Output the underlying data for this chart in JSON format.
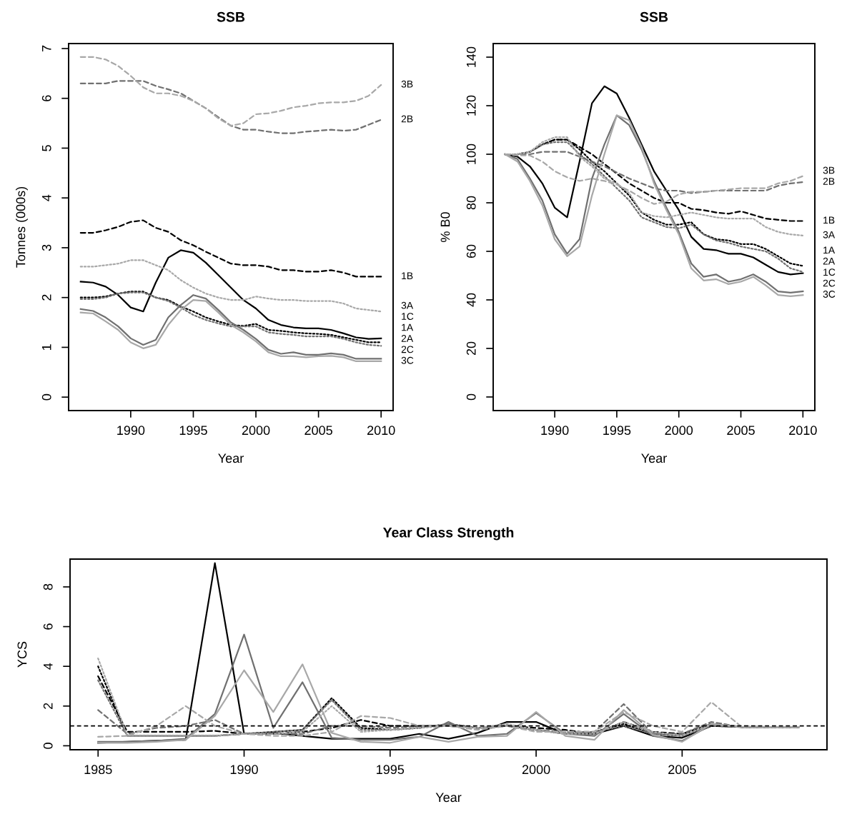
{
  "chart_data": [
    {
      "type": "line",
      "title": "SSB",
      "xlabel": "Year",
      "ylabel": "Tonnes (000s)",
      "xlim": [
        1985.04,
        2010.96
      ],
      "ylim": [
        -0.27,
        7.1
      ],
      "xticks": [
        1990,
        1995,
        2000,
        2005,
        2010
      ],
      "yticks": [
        0,
        1,
        2,
        3,
        4,
        5,
        6,
        7
      ],
      "x": [
        1986,
        1987,
        1988,
        1989,
        1990,
        1991,
        1992,
        1993,
        1994,
        1995,
        1996,
        1997,
        1998,
        1999,
        2000,
        2001,
        2002,
        2003,
        2004,
        2005,
        2006,
        2007,
        2008,
        2009,
        2010
      ],
      "series": [
        {
          "name": "1A",
          "color": "#000000",
          "line_style": "dotted",
          "values": [
            2.0,
            2.0,
            2.02,
            2.08,
            2.12,
            2.12,
            2.0,
            1.95,
            1.82,
            1.72,
            1.6,
            1.52,
            1.45,
            1.43,
            1.47,
            1.35,
            1.33,
            1.3,
            1.28,
            1.27,
            1.25,
            1.2,
            1.15,
            1.1,
            1.1
          ]
        },
        {
          "name": "1B",
          "color": "#000000",
          "line_style": "dashed",
          "values": [
            3.3,
            3.3,
            3.35,
            3.42,
            3.52,
            3.55,
            3.4,
            3.32,
            3.15,
            3.05,
            2.92,
            2.8,
            2.68,
            2.65,
            2.65,
            2.62,
            2.55,
            2.55,
            2.52,
            2.52,
            2.55,
            2.5,
            2.42,
            2.42,
            2.42
          ]
        },
        {
          "name": "1C",
          "color": "#000000",
          "line_style": "solid",
          "values": [
            2.32,
            2.3,
            2.22,
            2.05,
            1.8,
            1.72,
            2.3,
            2.8,
            2.95,
            2.9,
            2.7,
            2.45,
            2.2,
            1.95,
            1.78,
            1.55,
            1.45,
            1.4,
            1.38,
            1.38,
            1.35,
            1.28,
            1.2,
            1.17,
            1.18
          ]
        },
        {
          "name": "2A",
          "color": "#707070",
          "line_style": "dotted",
          "values": [
            1.97,
            1.97,
            2.0,
            2.08,
            2.1,
            2.1,
            2.0,
            1.93,
            1.8,
            1.65,
            1.55,
            1.48,
            1.42,
            1.42,
            1.42,
            1.3,
            1.27,
            1.25,
            1.22,
            1.22,
            1.22,
            1.17,
            1.1,
            1.05,
            1.03
          ]
        },
        {
          "name": "2B",
          "color": "#707070",
          "line_style": "dashed",
          "values": [
            6.3,
            6.3,
            6.3,
            6.35,
            6.35,
            6.35,
            6.25,
            6.18,
            6.1,
            5.95,
            5.8,
            5.62,
            5.45,
            5.37,
            5.37,
            5.33,
            5.3,
            5.3,
            5.33,
            5.35,
            5.37,
            5.35,
            5.37,
            5.47,
            5.57
          ]
        },
        {
          "name": "2C",
          "color": "#707070",
          "line_style": "solid",
          "values": [
            1.77,
            1.73,
            1.6,
            1.42,
            1.18,
            1.05,
            1.15,
            1.6,
            1.85,
            2.05,
            1.98,
            1.75,
            1.5,
            1.35,
            1.17,
            0.95,
            0.87,
            0.9,
            0.85,
            0.85,
            0.88,
            0.85,
            0.77,
            0.77,
            0.77
          ]
        },
        {
          "name": "3A",
          "color": "#a8a8a8",
          "line_style": "dotted",
          "values": [
            2.62,
            2.62,
            2.65,
            2.68,
            2.75,
            2.75,
            2.65,
            2.55,
            2.35,
            2.2,
            2.08,
            2.0,
            1.95,
            1.95,
            2.02,
            1.98,
            1.95,
            1.95,
            1.93,
            1.93,
            1.93,
            1.88,
            1.78,
            1.75,
            1.72
          ]
        },
        {
          "name": "3B",
          "color": "#a8a8a8",
          "line_style": "dashed",
          "values": [
            6.83,
            6.83,
            6.78,
            6.65,
            6.45,
            6.22,
            6.1,
            6.1,
            6.05,
            5.95,
            5.8,
            5.6,
            5.45,
            5.5,
            5.68,
            5.7,
            5.75,
            5.82,
            5.85,
            5.9,
            5.92,
            5.92,
            5.95,
            6.05,
            6.27
          ]
        },
        {
          "name": "3C",
          "color": "#a8a8a8",
          "line_style": "solid",
          "values": [
            1.7,
            1.68,
            1.52,
            1.35,
            1.1,
            0.98,
            1.05,
            1.45,
            1.75,
            1.95,
            1.93,
            1.7,
            1.45,
            1.3,
            1.12,
            0.9,
            0.82,
            0.82,
            0.8,
            0.82,
            0.83,
            0.8,
            0.72,
            0.72,
            0.72
          ]
        }
      ]
    },
    {
      "type": "line",
      "title": "SSB",
      "xlabel": "Year",
      "ylabel": "% B0",
      "xlim": [
        1985.04,
        2010.96
      ],
      "ylim": [
        -5.6,
        145.6
      ],
      "xticks": [
        1990,
        1995,
        2000,
        2005,
        2010
      ],
      "yticks": [
        0,
        20,
        40,
        60,
        80,
        100,
        120,
        140
      ],
      "x": [
        1986,
        1987,
        1988,
        1989,
        1990,
        1991,
        1992,
        1993,
        1994,
        1995,
        1996,
        1997,
        1998,
        1999,
        2000,
        2001,
        2002,
        2003,
        2004,
        2005,
        2006,
        2007,
        2008,
        2009,
        2010
      ],
      "series": [
        {
          "name": "1A",
          "color": "#000000",
          "line_style": "dotted",
          "values": [
            100,
            100,
            101,
            104,
            106,
            106,
            102,
            97,
            93,
            88,
            83,
            76,
            73,
            71,
            71,
            72,
            67,
            65,
            64.5,
            63,
            63,
            61,
            58,
            55,
            54
          ]
        },
        {
          "name": "1B",
          "color": "#000000",
          "line_style": "dashed",
          "values": [
            100,
            100,
            101,
            104,
            106,
            106,
            103,
            100,
            96,
            92,
            88,
            85,
            82,
            80,
            80,
            77.5,
            77,
            76,
            75.5,
            76.5,
            75,
            73.5,
            73,
            72.5,
            72.5
          ]
        },
        {
          "name": "1C",
          "color": "#000000",
          "line_style": "solid",
          "values": [
            100,
            99,
            95,
            88,
            78,
            74,
            97,
            121,
            128,
            125,
            115,
            104,
            93,
            85,
            77,
            66,
            61,
            60.5,
            59,
            59,
            57.5,
            54.5,
            51.5,
            50.5,
            51
          ]
        },
        {
          "name": "2A",
          "color": "#707070",
          "line_style": "dotted",
          "values": [
            100,
            100,
            101,
            104,
            105,
            105,
            100,
            96,
            91,
            86,
            81,
            74,
            72,
            70,
            69.5,
            71,
            67,
            64.5,
            63.5,
            62,
            61,
            60,
            57,
            53,
            51.5
          ]
        },
        {
          "name": "2B",
          "color": "#707070",
          "line_style": "dashed",
          "values": [
            100,
            100,
            100,
            101,
            101,
            101,
            99,
            97,
            95,
            92.5,
            90,
            88,
            86,
            85,
            85,
            84,
            84.5,
            85,
            85,
            85,
            85,
            85,
            87,
            88,
            88.5
          ]
        },
        {
          "name": "2C",
          "color": "#707070",
          "line_style": "solid",
          "values": [
            100,
            98,
            90,
            81,
            67,
            59,
            65,
            90,
            104,
            116,
            112,
            102,
            89,
            78,
            68,
            55,
            49.5,
            50.5,
            47.5,
            48.5,
            50.5,
            47.5,
            43.5,
            43,
            43.5
          ]
        },
        {
          "name": "3A",
          "color": "#a8a8a8",
          "line_style": "dotted",
          "values": [
            100,
            100,
            101,
            105,
            107,
            107,
            99,
            95,
            90,
            88,
            84,
            76,
            74.5,
            74,
            75,
            76,
            75,
            74,
            73.5,
            73.5,
            73.5,
            70,
            68,
            67,
            66.5
          ]
        },
        {
          "name": "3B",
          "color": "#a8a8a8",
          "line_style": "dashed",
          "values": [
            100,
            99.5,
            99.5,
            97,
            93,
            90.5,
            89,
            90,
            89,
            87.5,
            85,
            82,
            79.5,
            80.5,
            83.5,
            84.5,
            84.5,
            85,
            85.5,
            86,
            86,
            86,
            88,
            89,
            91
          ]
        },
        {
          "name": "3C",
          "color": "#a8a8a8",
          "line_style": "solid",
          "values": [
            100,
            97,
            89,
            79,
            65,
            58,
            62,
            83,
            100,
            116,
            114,
            103,
            88,
            77,
            67,
            53,
            48,
            48.5,
            46.5,
            47.5,
            49.5,
            46,
            42,
            41.5,
            42
          ]
        }
      ]
    },
    {
      "type": "line",
      "title": "Year Class Strength",
      "xlabel": "Year",
      "ylabel": "YCS",
      "xlim": [
        1984.04,
        2009.96
      ],
      "ylim": [
        -0.2,
        9.4
      ],
      "xticks": [
        1985,
        1990,
        1995,
        2000,
        2005
      ],
      "yticks": [
        0,
        2,
        4,
        6,
        8
      ],
      "x": [
        1985,
        1986,
        1987,
        1988,
        1989,
        1990,
        1991,
        1992,
        1993,
        1994,
        1995,
        1996,
        1997,
        1998,
        1999,
        2000,
        2001,
        2002,
        2003,
        2004,
        2005,
        2006,
        2007,
        2008,
        2009
      ],
      "ref_lines": [
        {
          "axis": "y",
          "value": 1,
          "color": "#000000",
          "line_style": "dashed"
        }
      ],
      "series": [
        {
          "color": "#000000",
          "line_style": "dotted",
          "values": [
            4.0,
            0.5,
            0.5,
            0.5,
            0.5,
            0.6,
            0.7,
            0.8,
            2.4,
            0.9,
            0.8,
            0.9,
            1.1,
            0.9,
            1.0,
            0.8,
            0.6,
            0.7,
            1.1,
            0.6,
            0.5,
            1.1,
            0.95,
            0.95,
            0.95
          ]
        },
        {
          "color": "#000000",
          "line_style": "dashed",
          "values": [
            3.5,
            0.7,
            0.7,
            0.7,
            0.75,
            0.6,
            0.6,
            0.7,
            0.9,
            1.3,
            1.0,
            1.0,
            1.0,
            0.9,
            1.0,
            0.9,
            0.8,
            0.6,
            1.2,
            0.7,
            0.6,
            1.1,
            0.95,
            0.95,
            0.95
          ]
        },
        {
          "color": "#000000",
          "line_style": "solid",
          "values": [
            0.15,
            0.2,
            0.25,
            0.3,
            9.2,
            0.6,
            0.65,
            0.5,
            0.35,
            0.35,
            0.35,
            0.6,
            0.35,
            0.65,
            1.2,
            1.2,
            0.6,
            0.6,
            1.0,
            0.5,
            0.4,
            1.0,
            0.95,
            0.95,
            0.95
          ]
        },
        {
          "color": "#707070",
          "line_style": "dotted",
          "values": [
            3.3,
            0.5,
            0.5,
            0.5,
            0.5,
            0.6,
            0.7,
            0.8,
            2.3,
            0.8,
            0.8,
            0.9,
            1.1,
            0.9,
            1.0,
            0.8,
            0.6,
            0.7,
            1.0,
            0.6,
            0.5,
            1.0,
            0.95,
            0.95,
            0.95
          ]
        },
        {
          "color": "#707070",
          "line_style": "dashed",
          "values": [
            1.8,
            0.6,
            0.9,
            1.0,
            1.3,
            0.6,
            0.6,
            0.6,
            1.0,
            1.0,
            0.9,
            1.0,
            1.0,
            0.9,
            1.0,
            0.8,
            0.7,
            0.7,
            2.1,
            0.6,
            0.6,
            1.2,
            0.95,
            0.95,
            0.95
          ]
        },
        {
          "color": "#707070",
          "line_style": "solid",
          "values": [
            0.2,
            0.2,
            0.25,
            0.35,
            1.6,
            5.6,
            0.9,
            3.2,
            0.4,
            0.3,
            0.3,
            0.45,
            1.2,
            0.5,
            0.6,
            1.65,
            0.6,
            0.5,
            1.6,
            0.5,
            0.25,
            1.05,
            0.95,
            0.95,
            0.95
          ]
        },
        {
          "color": "#a8a8a8",
          "line_style": "dotted",
          "values": [
            4.4,
            0.5,
            0.5,
            0.5,
            0.5,
            0.6,
            0.6,
            0.7,
            2.0,
            0.7,
            0.8,
            0.9,
            1.0,
            0.9,
            1.1,
            0.8,
            0.6,
            0.6,
            1.2,
            0.7,
            0.5,
            1.1,
            0.95,
            0.95,
            0.95
          ]
        },
        {
          "color": "#a8a8a8",
          "line_style": "dashed",
          "values": [
            0.45,
            0.5,
            1.0,
            2.0,
            1.0,
            0.6,
            0.5,
            0.5,
            0.7,
            1.5,
            1.4,
            1.0,
            1.0,
            0.8,
            1.0,
            0.7,
            0.7,
            0.7,
            1.7,
            1.0,
            0.7,
            2.2,
            1.0,
            0.95,
            0.95
          ]
        },
        {
          "color": "#a8a8a8",
          "line_style": "solid",
          "values": [
            0.15,
            0.15,
            0.2,
            0.3,
            1.5,
            3.8,
            1.7,
            4.1,
            0.65,
            0.2,
            0.15,
            0.45,
            0.2,
            0.45,
            0.5,
            1.7,
            0.5,
            0.3,
            1.8,
            0.55,
            0.2,
            1.1,
            0.95,
            0.95,
            0.95
          ]
        }
      ]
    }
  ]
}
